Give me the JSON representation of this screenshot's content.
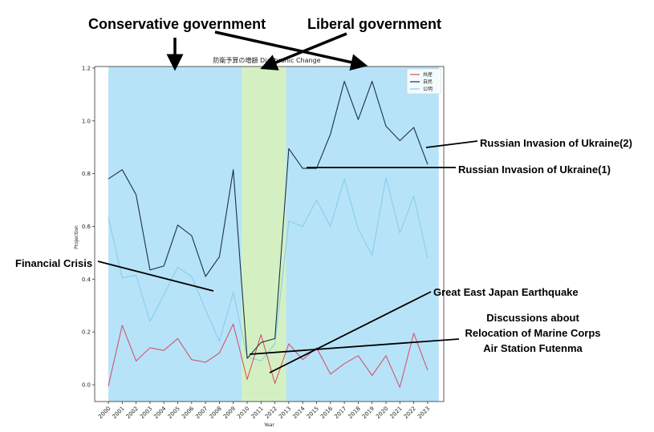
{
  "chart_data": {
    "type": "line",
    "title": "防衛予算の増額 Diachronic Change",
    "xlabel": "Year",
    "ylabel": "Projection",
    "ylim": [
      -0.06,
      1.2
    ],
    "yticks": [
      0.0,
      0.2,
      0.4,
      0.6,
      0.8,
      1.0,
      1.2
    ],
    "categories": [
      "2000",
      "2001",
      "2002",
      "2003",
      "2004",
      "2005",
      "2006",
      "2007",
      "2008",
      "2009",
      "2010",
      "2011",
      "2012",
      "2013",
      "2014",
      "2015",
      "2016",
      "2017",
      "2018",
      "2019",
      "2020",
      "2021",
      "2022",
      "2023"
    ],
    "series": [
      {
        "name": "共産",
        "color": "#d0566c",
        "values": [
          -0.005,
          0.225,
          0.09,
          0.14,
          0.13,
          0.175,
          0.095,
          0.085,
          0.12,
          0.23,
          0.02,
          0.19,
          0.005,
          0.155,
          0.095,
          0.14,
          0.04,
          0.08,
          0.11,
          0.035,
          0.11,
          -0.01,
          0.195,
          0.055
        ]
      },
      {
        "name": "自民",
        "color": "#1b2f4a",
        "values": [
          0.78,
          0.815,
          0.72,
          0.435,
          0.45,
          0.605,
          0.565,
          0.41,
          0.485,
          0.815,
          0.1,
          0.16,
          0.175,
          0.895,
          0.82,
          0.82,
          0.95,
          1.15,
          1.005,
          1.15,
          0.98,
          0.925,
          0.975,
          0.835
        ]
      },
      {
        "name": "公明",
        "color": "#87ceeb",
        "values": [
          0.635,
          0.405,
          0.415,
          0.24,
          0.34,
          0.445,
          0.41,
          0.285,
          0.165,
          0.35,
          0.105,
          0.09,
          0.155,
          0.62,
          0.6,
          0.7,
          0.6,
          0.78,
          0.59,
          0.49,
          0.785,
          0.575,
          0.715,
          0.48
        ]
      }
    ],
    "shaded_regions": [
      {
        "from": "2000",
        "to": "2009.6",
        "color": "#b7e3f8"
      },
      {
        "from": "2009.6",
        "to": "2012.8",
        "color": "#d4f0c2"
      },
      {
        "from": "2012.8",
        "to": "2023.8",
        "color": "#b7e3f8"
      }
    ],
    "legend_position": "top-right"
  },
  "annotations": {
    "conservative": "Conservative government",
    "liberal": "Liberal government",
    "ukraine2": "Russian Invasion of Ukraine(2)",
    "ukraine1": "Russian Invasion of Ukraine(1)",
    "financial": "Financial Crisis",
    "earthquake": "Great East Japan Earthquake",
    "futenma_1": "Discussions about",
    "futenma_2": "Relocation of Marine Corps",
    "futenma_3": "Air Station Futenma"
  }
}
